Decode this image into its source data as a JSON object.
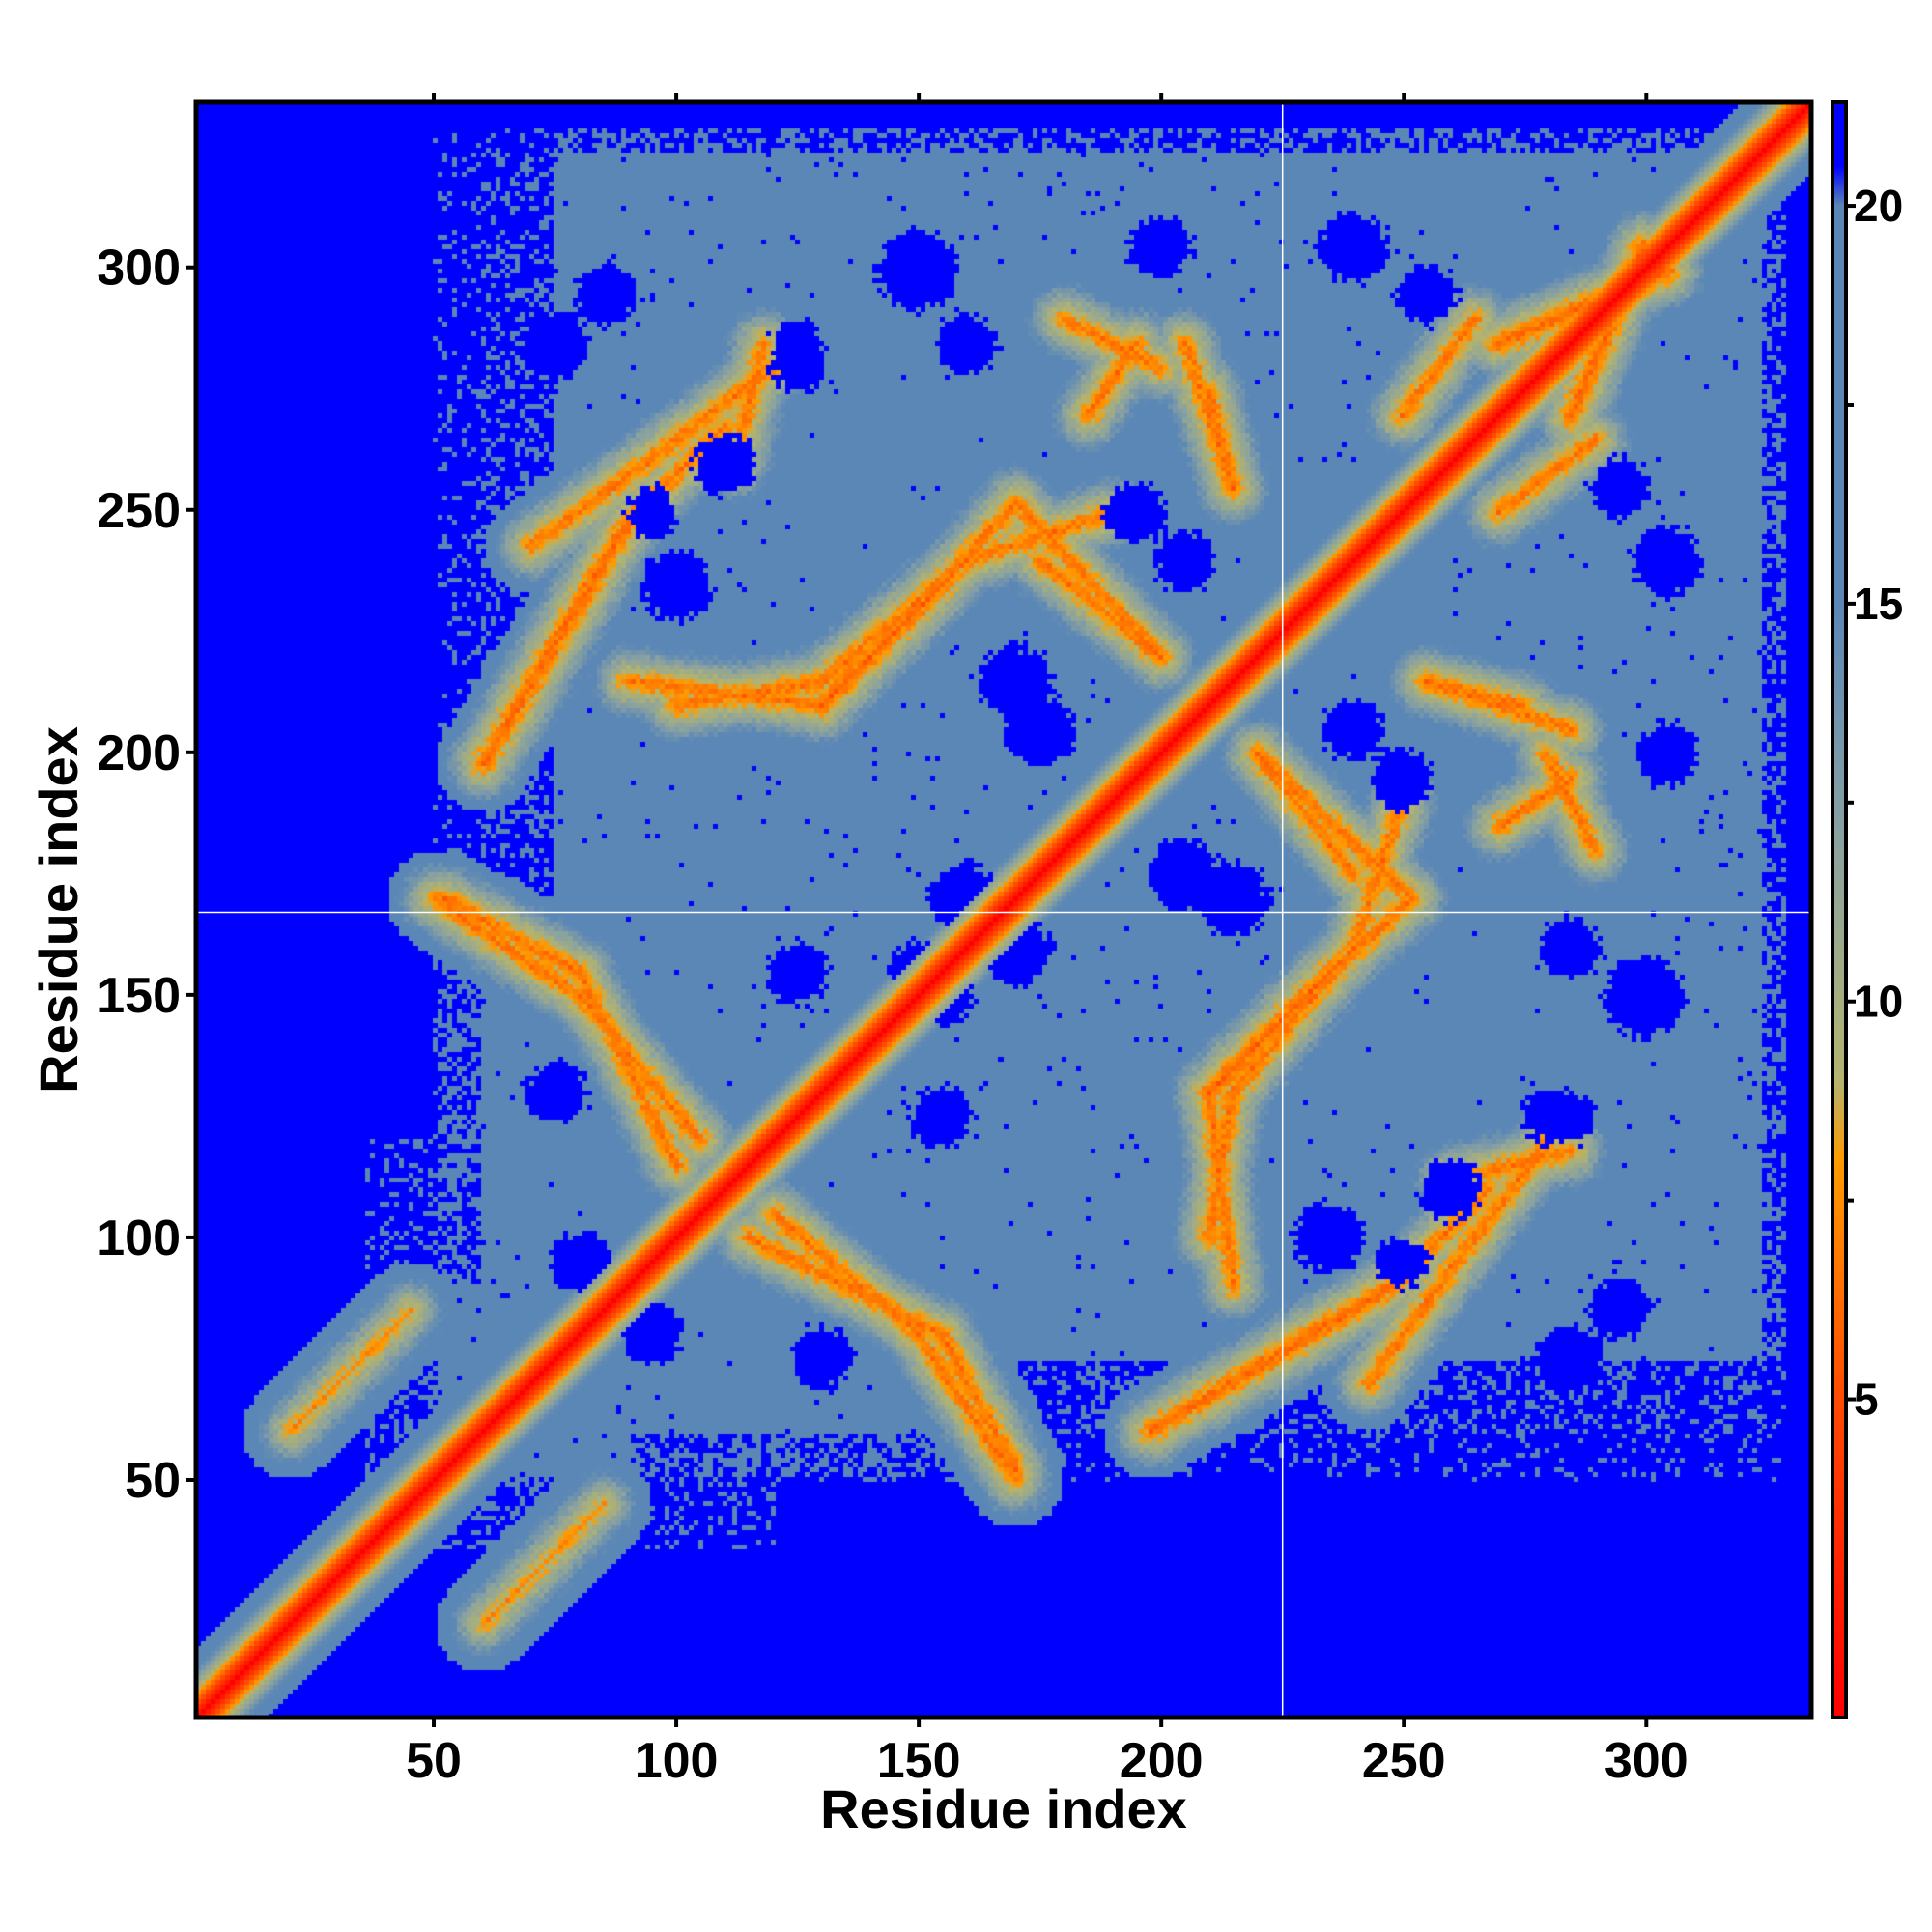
{
  "chart_data": {
    "type": "heatmap",
    "title": "",
    "xlabel": "Residue index",
    "ylabel": "Residue index",
    "xlim": [
      1,
      334
    ],
    "ylim": [
      1,
      334
    ],
    "x_ticks": [
      50,
      100,
      150,
      200,
      250,
      300
    ],
    "y_ticks": [
      50,
      100,
      150,
      200,
      250,
      300
    ],
    "residue_count": 334,
    "colorbar": {
      "range": [
        1,
        21.3
      ],
      "ticks": [
        5,
        10,
        15,
        20
      ],
      "stops": [
        {
          "value": 1,
          "color": "#ff0000"
        },
        {
          "value": 5,
          "color": "#ff4a00"
        },
        {
          "value": 8,
          "color": "#ff9a00"
        },
        {
          "value": 9,
          "color": "#b4b46e"
        },
        {
          "value": 12,
          "color": "#8aa2a0"
        },
        {
          "value": 15,
          "color": "#5b87b7"
        },
        {
          "value": 20,
          "color": "#5b87b7"
        },
        {
          "value": 20.5,
          "color": "#0000ff"
        },
        {
          "value": 21.3,
          "color": "#0000ff"
        }
      ]
    },
    "contact_bands": [
      {
        "from": [
          60,
          198
        ],
        "to": [
          90,
          248
        ],
        "min": 5.5
      },
      {
        "from": [
          90,
          248
        ],
        "to": [
          110,
          268
        ],
        "min": 6
      },
      {
        "from": [
          90,
          215
        ],
        "to": [
          130,
          210
        ],
        "min": 6
      },
      {
        "from": [
          130,
          210
        ],
        "to": [
          155,
          235
        ],
        "min": 5.5
      },
      {
        "from": [
          155,
          235
        ],
        "to": [
          170,
          252
        ],
        "min": 6
      },
      {
        "from": [
          170,
          252
        ],
        "to": [
          200,
          220
        ],
        "min": 6
      },
      {
        "from": [
          180,
          290
        ],
        "to": [
          200,
          280
        ],
        "min": 6
      },
      {
        "from": [
          205,
          285
        ],
        "to": [
          215,
          255
        ],
        "min": 6
      },
      {
        "from": [
          50,
          170
        ],
        "to": [
          80,
          150
        ],
        "min": 6
      },
      {
        "from": [
          80,
          150
        ],
        "to": [
          105,
          120
        ],
        "min": 6
      },
      {
        "from": [
          115,
          100
        ],
        "to": [
          155,
          80
        ],
        "min": 6
      },
      {
        "from": [
          155,
          80
        ],
        "to": [
          170,
          52
        ],
        "min": 6
      },
      {
        "from": [
          210,
          100
        ],
        "to": [
          215,
          130
        ],
        "min": 6
      },
      {
        "from": [
          215,
          130
        ],
        "to": [
          240,
          160
        ],
        "min": 6
      },
      {
        "from": [
          240,
          160
        ],
        "to": [
          250,
          190
        ],
        "min": 6
      },
      {
        "from": [
          220,
          200
        ],
        "to": [
          240,
          175
        ],
        "min": 6
      },
      {
        "from": [
          243,
          70
        ],
        "to": [
          265,
          100
        ],
        "min": 6
      },
      {
        "from": [
          260,
          112
        ],
        "to": [
          285,
          118
        ],
        "min": 6
      },
      {
        "from": [
          270,
          185
        ],
        "to": [
          285,
          195
        ],
        "min": 6
      },
      {
        "from": [
          255,
          215
        ],
        "to": [
          275,
          210
        ],
        "min": 6
      },
      {
        "from": [
          270,
          285
        ],
        "to": [
          305,
          300
        ],
        "min": 5.5
      },
      {
        "from": [
          250,
          270
        ],
        "to": [
          265,
          290
        ],
        "min": 6
      },
      {
        "from": [
          100,
          265
        ],
        "to": [
          120,
          280
        ],
        "min": 6
      },
      {
        "from": [
          20,
          60
        ],
        "to": [
          45,
          85
        ],
        "min": 7
      }
    ],
    "holes": [
      {
        "c": [
          125,
          280
        ],
        "r": 4
      },
      {
        "c": [
          170,
          160
        ],
        "r": 6
      },
      {
        "c": [
          150,
          155
        ],
        "r": 5
      },
      {
        "c": [
          155,
          125
        ],
        "r": 5
      },
      {
        "c": [
          175,
          205
        ],
        "r": 6
      },
      {
        "c": [
          215,
          170
        ],
        "r": 6
      },
      {
        "c": [
          235,
          100
        ],
        "r": 6
      },
      {
        "c": [
          285,
          125
        ],
        "r": 4
      },
      {
        "c": [
          205,
          240
        ],
        "r": 5
      },
      {
        "c": [
          110,
          260
        ],
        "r": 5
      },
      {
        "c": [
          255,
          295
        ],
        "r": 5
      },
      {
        "c": [
          300,
          150
        ],
        "r": 7
      },
      {
        "c": [
          305,
          240
        ],
        "r": 6
      },
      {
        "c": [
          95,
          250
        ],
        "r": 4
      },
      {
        "c": [
          80,
          95
        ],
        "r": 5
      },
      {
        "c": [
          130,
          75
        ],
        "r": 5
      },
      {
        "c": [
          285,
          75
        ],
        "r": 6
      },
      {
        "c": [
          85,
          295
        ],
        "r": 5
      },
      {
        "c": [
          200,
          305
        ],
        "r": 5
      },
      {
        "c": [
          160,
          285
        ],
        "r": 5
      },
      {
        "c": [
          250,
          195
        ],
        "r": 5
      }
    ]
  }
}
